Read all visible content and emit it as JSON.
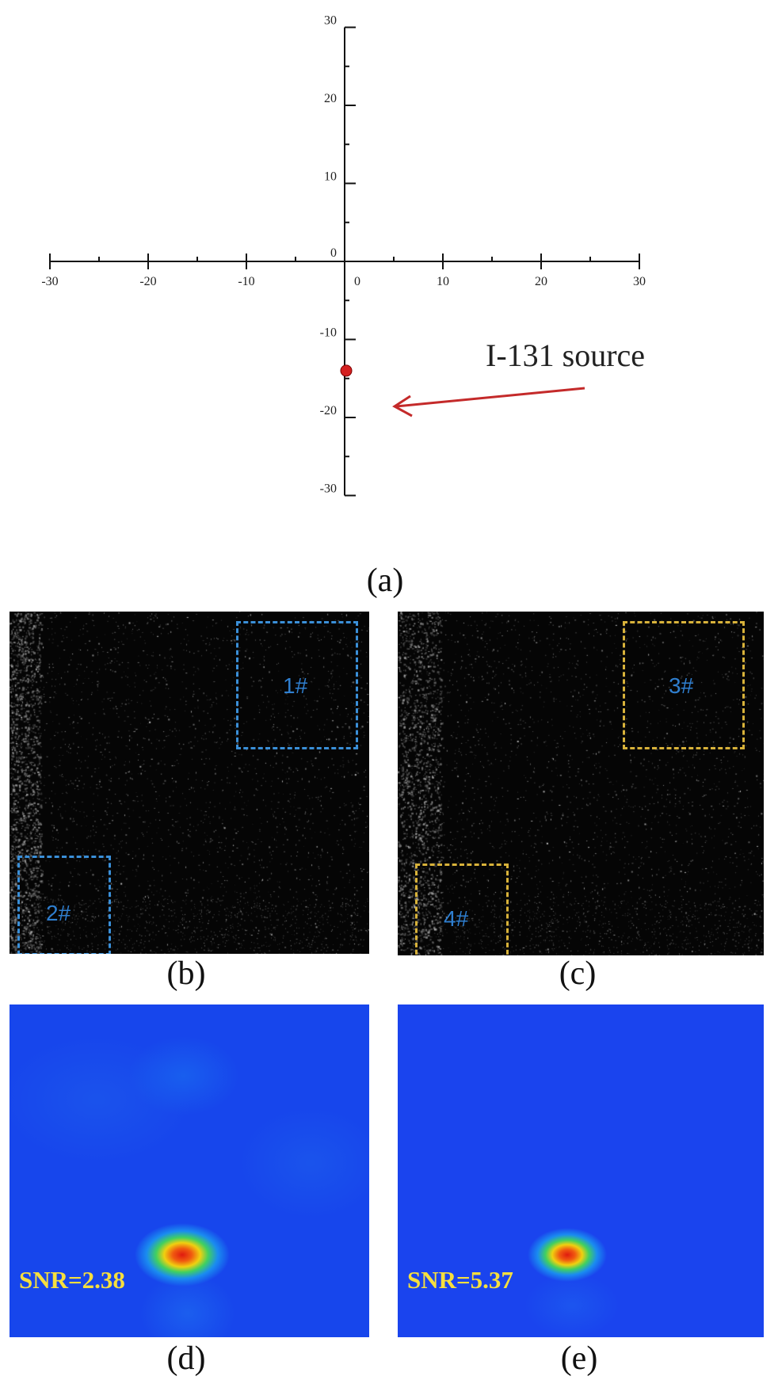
{
  "panel_a": {
    "caption": "(a)",
    "x_ticks": [
      "-30",
      "-20",
      "-10",
      "0",
      "10",
      "20",
      "30"
    ],
    "y_ticks": [
      "30",
      "20",
      "10",
      "0",
      "-10",
      "-20",
      "-30"
    ],
    "annotation": "I-131 source",
    "source_point": {
      "x": 0,
      "y": -14
    },
    "axis_range": [
      -30,
      30
    ],
    "colors": {
      "axis": "#111111",
      "source": "#d42020",
      "arrow": "#c42a2a"
    }
  },
  "panel_b": {
    "caption": "(b)",
    "roi_1": "1#",
    "roi_2": "2#",
    "roi_color": "#3a8fd8"
  },
  "panel_c": {
    "caption": "(c)",
    "roi_3": "3#",
    "roi_4": "4#",
    "roi_color": "#d8b23a"
  },
  "panel_d": {
    "caption": "(d)",
    "snr": "SNR=2.38"
  },
  "panel_e": {
    "caption": "(e)",
    "snr": "SNR=5.37"
  }
}
